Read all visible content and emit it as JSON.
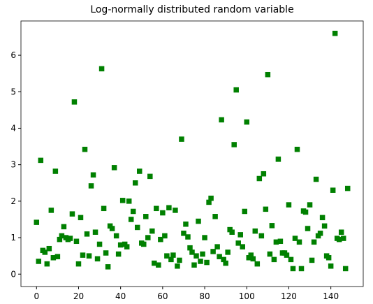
{
  "chart_data": {
    "type": "scatter",
    "title": "Log-normally distributed random variable",
    "color": "#008000",
    "marker": "square",
    "x": [
      0,
      1,
      2,
      3,
      4,
      5,
      6,
      7,
      8,
      9,
      10,
      11,
      12,
      13,
      14,
      15,
      16,
      17,
      18,
      19,
      20,
      21,
      22,
      23,
      24,
      25,
      26,
      27,
      28,
      29,
      30,
      31,
      32,
      33,
      34,
      35,
      36,
      37,
      38,
      39,
      40,
      41,
      42,
      43,
      44,
      45,
      46,
      47,
      48,
      49,
      50,
      51,
      52,
      53,
      54,
      55,
      56,
      57,
      58,
      59,
      60,
      61,
      62,
      63,
      64,
      65,
      66,
      67,
      68,
      69,
      70,
      71,
      72,
      73,
      74,
      75,
      76,
      77,
      78,
      79,
      80,
      81,
      82,
      83,
      84,
      85,
      86,
      87,
      88,
      89,
      90,
      91,
      92,
      93,
      94,
      95,
      96,
      97,
      98,
      99,
      100,
      101,
      102,
      103,
      104,
      105,
      106,
      107,
      108,
      109,
      110,
      111,
      112,
      113,
      114,
      115,
      116,
      117,
      118,
      119,
      120,
      121,
      122,
      123,
      124,
      125,
      126,
      127,
      128,
      129,
      130,
      131,
      132,
      133,
      134,
      135,
      136,
      137,
      138,
      139,
      140,
      141,
      142,
      143,
      144,
      145,
      146,
      147,
      148
    ],
    "values": [
      1.42,
      0.35,
      3.12,
      0.65,
      0.6,
      0.28,
      0.7,
      1.75,
      0.45,
      2.82,
      0.48,
      0.95,
      1.05,
      1.3,
      1.0,
      0.95,
      0.98,
      1.65,
      4.72,
      0.9,
      0.28,
      1.55,
      0.52,
      3.42,
      1.1,
      0.5,
      2.42,
      2.72,
      1.15,
      0.42,
      0.82,
      5.63,
      1.8,
      0.58,
      0.2,
      1.32,
      1.25,
      2.92,
      1.05,
      0.55,
      0.8,
      2.02,
      0.82,
      0.75,
      2.0,
      1.5,
      1.72,
      2.5,
      1.28,
      2.82,
      0.85,
      0.82,
      1.58,
      1.0,
      2.68,
      1.18,
      0.3,
      1.8,
      0.25,
      0.95,
      1.68,
      1.05,
      0.5,
      1.82,
      0.4,
      0.52,
      1.75,
      0.22,
      0.38,
      3.7,
      1.12,
      1.37,
      1.02,
      0.72,
      0.6,
      0.25,
      0.5,
      1.45,
      0.35,
      0.55,
      1.0,
      0.32,
      1.97,
      2.08,
      0.62,
      1.58,
      0.75,
      0.48,
      4.23,
      0.4,
      0.3,
      0.6,
      1.22,
      1.15,
      3.55,
      5.05,
      0.85,
      1.08,
      0.75,
      1.72,
      4.17,
      0.45,
      0.52,
      0.42,
      1.18,
      0.28,
      2.62,
      1.05,
      2.75,
      1.78,
      5.47,
      0.55,
      1.33,
      0.4,
      0.88,
      3.15,
      0.9,
      0.58,
      0.58,
      0.52,
      1.9,
      0.4,
      0.15,
      0.98,
      3.42,
      0.88,
      0.15,
      1.73,
      1.7,
      1.25,
      1.9,
      0.38,
      0.88,
      2.6,
      1.05,
      1.12,
      1.55,
      1.32,
      0.5,
      0.45,
      0.22,
      2.3,
      6.6,
      0.98,
      0.95,
      1.15,
      0.98,
      0.15,
      2.35
    ],
    "xlim": [
      -7.4,
      155.4
    ],
    "ylim": [
      -0.34,
      6.94
    ],
    "xticks": [
      0,
      20,
      40,
      60,
      80,
      100,
      120,
      140
    ],
    "yticks": [
      0,
      1,
      2,
      3,
      4,
      5,
      6
    ]
  }
}
